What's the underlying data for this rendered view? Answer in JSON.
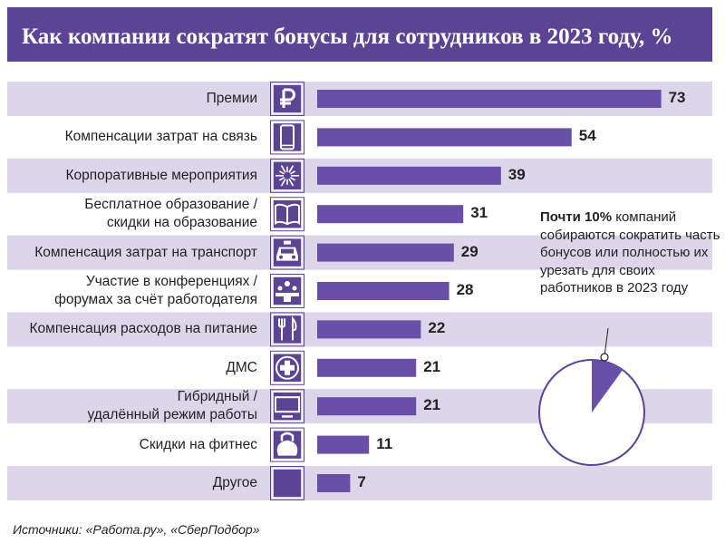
{
  "title": "Как компании сократят бонусы для сотрудников в 2023 году, %",
  "chart_data": {
    "type": "bar",
    "orientation": "horizontal",
    "categories": [
      [
        "Премии"
      ],
      [
        "Компенсации затрат на связь"
      ],
      [
        "Корпоративные мероприятия"
      ],
      [
        "Бесплатное образование /",
        "скидки на образование"
      ],
      [
        "Компенсация затрат на транспорт"
      ],
      [
        "Участие в конференциях /",
        "форумах за счёт работодателя"
      ],
      [
        "Компенсация расходов на питание"
      ],
      [
        "ДМС"
      ],
      [
        "Гибридный /",
        "удалённый режим работы"
      ],
      [
        "Скидки на фитнес"
      ],
      [
        "Другое"
      ]
    ],
    "values": [
      73,
      54,
      39,
      31,
      29,
      28,
      22,
      21,
      21,
      11,
      7
    ],
    "icons": [
      "ruble-icon",
      "phone-icon",
      "firework-icon",
      "book-icon",
      "taxi-icon",
      "conference-icon",
      "cutlery-icon",
      "medical-cross-icon",
      "monitor-icon",
      "kettlebell-icon",
      "blank-icon"
    ],
    "colors": {
      "bar": "#6a4fa8",
      "band": "#dcd6ea",
      "icon_box": "#5b4493",
      "title_bg": "#5b4493"
    },
    "pie": {
      "value": 10,
      "note_bold": "Почти 10%",
      "note_text": " компаний собираются сократить часть бонусов или полностью их урезать для своих работников в 2023 году"
    }
  },
  "source": "Источники: «Работа.ру», «СберПодбор»"
}
